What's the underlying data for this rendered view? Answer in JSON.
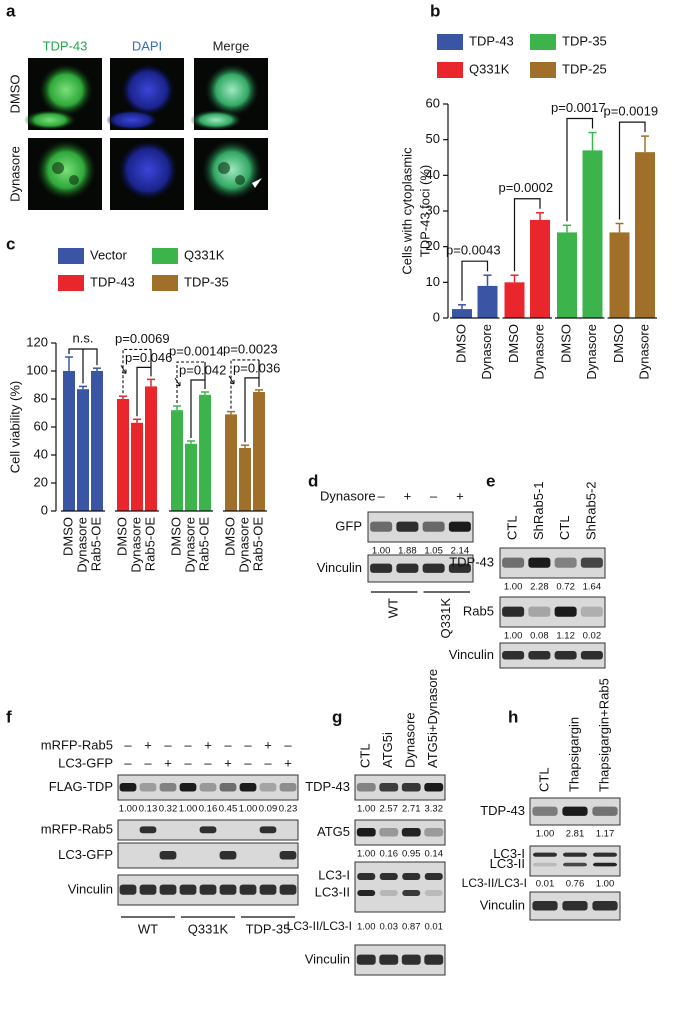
{
  "microscopy": {
    "label": "a",
    "columns": [
      "TDP-43",
      "DAPI",
      "Merge"
    ],
    "colors": [
      "#22a84a",
      "#2e6fc0",
      "#222222"
    ],
    "rows": [
      "DMSO",
      "Dynasore"
    ]
  },
  "chart_data": [
    {
      "type": "bar",
      "label": "b",
      "ylabel": [
        "Cells with cytoplasmic",
        "TDP-43 foci (%)"
      ],
      "categories": [
        "DMSO",
        "Dynasore"
      ],
      "series": [
        {
          "name": "TDP-43",
          "color": "#3a55a4",
          "values": [
            2.5,
            9
          ],
          "errors": [
            1.2,
            3
          ],
          "pvalues": [
            "p=0.0043"
          ]
        },
        {
          "name": "Q331K",
          "color": "#e8262b",
          "values": [
            10,
            27.5
          ],
          "errors": [
            2,
            2
          ],
          "pvalues": [
            "p=0.0002"
          ]
        },
        {
          "name": "TDP-35",
          "color": "#3cb44b",
          "values": [
            24,
            47
          ],
          "errors": [
            2,
            5
          ],
          "pvalues": [
            "p=0.0017"
          ]
        },
        {
          "name": "TDP-25",
          "color": "#a0702a",
          "values": [
            24,
            46.5
          ],
          "errors": [
            2.5,
            4.5
          ],
          "pvalues": [
            "p=0.0019"
          ]
        }
      ],
      "ylim": [
        0,
        60
      ],
      "yticks": [
        0,
        10,
        20,
        30,
        40,
        50,
        60
      ]
    },
    {
      "type": "bar",
      "label": "c",
      "ylabel": [
        "Cell viability (%)"
      ],
      "categories": [
        "DMSO",
        "Dynasore",
        "Rab5-OE"
      ],
      "series": [
        {
          "name": "Vector",
          "color": "#3a55a4",
          "values": [
            100,
            87,
            100
          ],
          "errors": [
            10,
            2,
            2
          ],
          "pvalues": [
            "n.s."
          ]
        },
        {
          "name": "TDP-43",
          "color": "#e8262b",
          "values": [
            80,
            63,
            89
          ],
          "errors": [
            2,
            2.5,
            5
          ],
          "pvalues": [
            "p=0.0069",
            "p=0.046"
          ]
        },
        {
          "name": "Q331K",
          "color": "#3cb44b",
          "values": [
            72,
            48,
            83
          ],
          "errors": [
            3,
            2,
            2
          ],
          "pvalues": [
            "p=0.0014",
            "p=0.042"
          ]
        },
        {
          "name": "TDP-35",
          "color": "#a0702a",
          "values": [
            69,
            45,
            85
          ],
          "errors": [
            2,
            2,
            1.5
          ],
          "pvalues": [
            "p=0.0023",
            "p=0.036"
          ]
        }
      ],
      "ylim": [
        0,
        120
      ],
      "yticks": [
        0,
        20,
        40,
        60,
        80,
        100,
        120
      ]
    }
  ],
  "blots": [
    {
      "label": "d",
      "treatment": "Dynasore",
      "signs": [
        "–",
        "+",
        "–",
        "+"
      ],
      "rows": [
        {
          "name": "GFP",
          "quant": [
            "1.00",
            "1.88",
            "1.05",
            "2.14"
          ]
        },
        {
          "name": "Vinculin"
        }
      ],
      "groups": [
        "WT",
        "Q331K"
      ]
    },
    {
      "label": "e",
      "lanes": [
        "CTL",
        "ShRab5-1",
        "CTL",
        "ShRab5-2"
      ],
      "rows": [
        {
          "name": "TDP-43",
          "quant": [
            "1.00",
            "2.28",
            "0.72",
            "1.64"
          ]
        },
        {
          "name": "Rab5",
          "quant": [
            "1.00",
            "0.08",
            "1.12",
            "0.02"
          ]
        },
        {
          "name": "Vinculin"
        }
      ]
    },
    {
      "label": "f",
      "conditions": [
        {
          "name": "mRFP-Rab5",
          "signs": [
            "–",
            "+",
            "–",
            "–",
            "+",
            "–",
            "–",
            "+",
            "–"
          ]
        },
        {
          "name": "LC3-GFP",
          "signs": [
            "–",
            "–",
            "+",
            "–",
            "–",
            "+",
            "–",
            "–",
            "+"
          ]
        }
      ],
      "rows": [
        {
          "name": "FLAG-TDP",
          "quant": [
            "1.00",
            "0.13",
            "0.32",
            "1.00",
            "0.16",
            "0.45",
            "1.00",
            "0.09",
            "0.23"
          ]
        },
        {
          "name": "mRFP-Rab5"
        },
        {
          "name": "LC3-GFP"
        },
        {
          "name": "Vinculin"
        }
      ],
      "groups": [
        "WT",
        "Q331K",
        "TDP-35"
      ]
    },
    {
      "label": "g",
      "lanes": [
        "CTL",
        "ATG5i",
        "Dynasore",
        "ATG5i+Dynasore"
      ],
      "rows": [
        {
          "name": "TDP-43",
          "quant": [
            "1.00",
            "2.57",
            "2.71",
            "3.32"
          ]
        },
        {
          "name": "ATG5",
          "quant": [
            "1.00",
            "0.16",
            "0.95",
            "0.14"
          ]
        },
        {
          "names": [
            "LC3-I",
            "LC3-II"
          ]
        },
        {
          "name": "Vinculin"
        }
      ],
      "ratio": {
        "name": "LC3-II/LC3-I",
        "quant": [
          "1.00",
          "0.03",
          "0.87",
          "0.01"
        ]
      }
    },
    {
      "label": "h",
      "lanes": [
        "CTL",
        "Thapsigargin",
        "Thapsigargin+Rab5"
      ],
      "rows": [
        {
          "name": "TDP-43",
          "quant": [
            "1.00",
            "2.81",
            "1.17"
          ]
        },
        {
          "names": [
            "LC3-I",
            "LC3-II"
          ]
        },
        {
          "name": "Vinculin"
        }
      ],
      "ratio": {
        "name": "LC3-II/LC3-I",
        "quant": [
          "0.01",
          "0.76",
          "1.00"
        ]
      }
    }
  ]
}
